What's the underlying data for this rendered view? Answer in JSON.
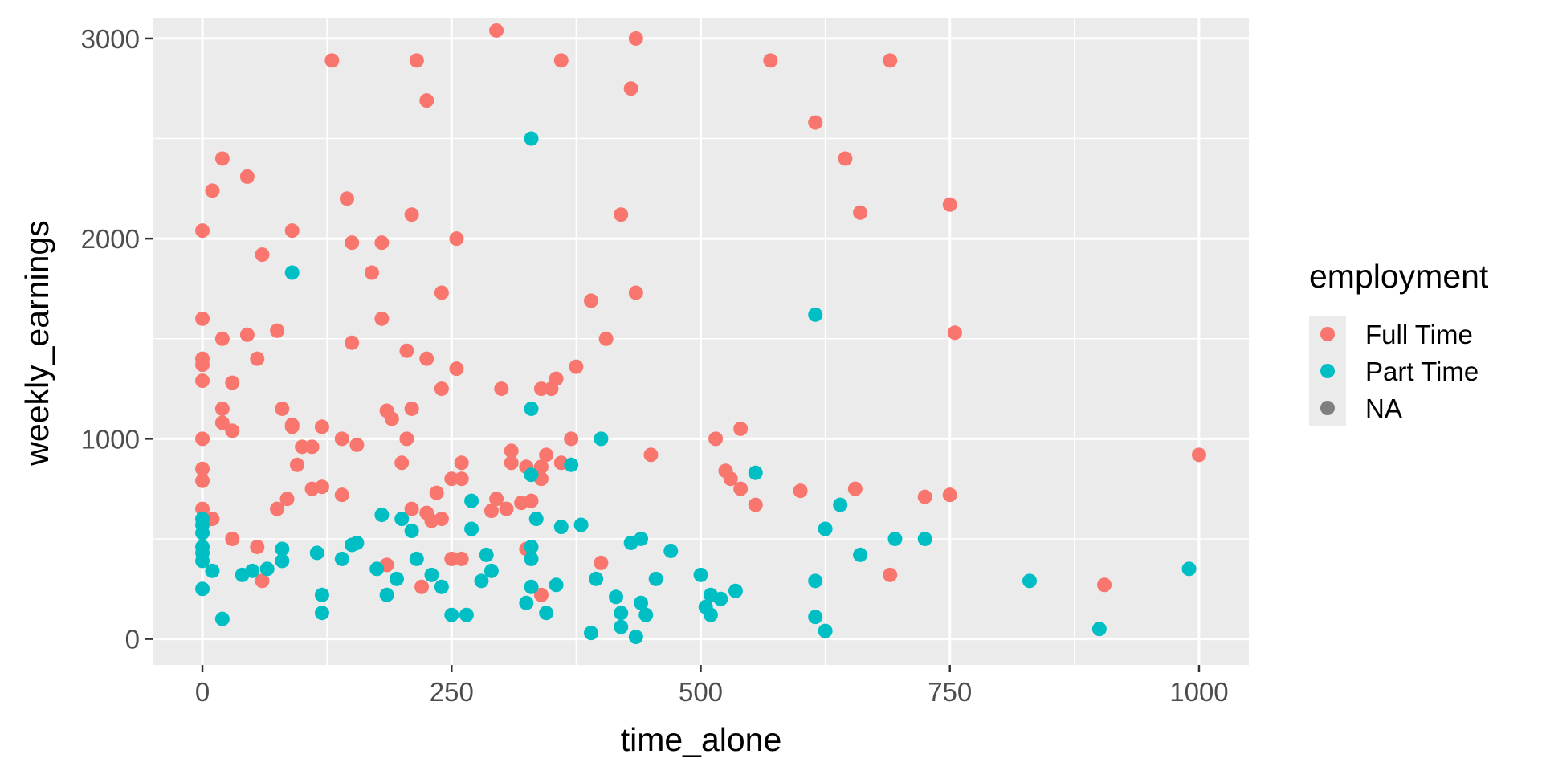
{
  "chart_data": {
    "type": "scatter",
    "xlabel": "time_alone",
    "ylabel": "weekly_earnings",
    "xlim": [
      -50,
      1050
    ],
    "ylim": [
      -130,
      3100
    ],
    "x_ticks": [
      0,
      250,
      500,
      750,
      1000
    ],
    "x_tick_labels": [
      "0",
      "250",
      "500",
      "750",
      "1000"
    ],
    "y_ticks": [
      0,
      1000,
      2000,
      3000
    ],
    "y_tick_labels": [
      "0",
      "1000",
      "2000",
      "3000"
    ],
    "grid": true,
    "legend": {
      "title": "employment",
      "placement": "right",
      "entries": [
        {
          "label": "Full Time",
          "color": "#F8766D"
        },
        {
          "label": "Part Time",
          "color": "#00BFC4"
        },
        {
          "label": "NA",
          "color": "#7F7F7F"
        }
      ]
    },
    "series": [
      {
        "name": "Full Time",
        "color": "#F8766D",
        "points": [
          [
            0,
            2040
          ],
          [
            0,
            1600
          ],
          [
            0,
            1400
          ],
          [
            0,
            1370
          ],
          [
            0,
            1290
          ],
          [
            0,
            1000
          ],
          [
            0,
            850
          ],
          [
            0,
            790
          ],
          [
            0,
            650
          ],
          [
            10,
            2240
          ],
          [
            10,
            600
          ],
          [
            20,
            2400
          ],
          [
            20,
            1500
          ],
          [
            20,
            1150
          ],
          [
            20,
            1080
          ],
          [
            30,
            1280
          ],
          [
            30,
            1040
          ],
          [
            30,
            500
          ],
          [
            45,
            2310
          ],
          [
            45,
            1520
          ],
          [
            55,
            1400
          ],
          [
            55,
            460
          ],
          [
            60,
            1920
          ],
          [
            60,
            290
          ],
          [
            75,
            1540
          ],
          [
            75,
            650
          ],
          [
            80,
            1150
          ],
          [
            85,
            700
          ],
          [
            90,
            2040
          ],
          [
            90,
            1070
          ],
          [
            90,
            1060
          ],
          [
            95,
            870
          ],
          [
            100,
            960
          ],
          [
            110,
            960
          ],
          [
            110,
            750
          ],
          [
            120,
            1060
          ],
          [
            120,
            760
          ],
          [
            130,
            2890
          ],
          [
            140,
            1000
          ],
          [
            140,
            720
          ],
          [
            145,
            2200
          ],
          [
            150,
            1980
          ],
          [
            150,
            1480
          ],
          [
            155,
            970
          ],
          [
            170,
            1830
          ],
          [
            180,
            1980
          ],
          [
            180,
            1600
          ],
          [
            185,
            1140
          ],
          [
            190,
            1100
          ],
          [
            200,
            880
          ],
          [
            205,
            1440
          ],
          [
            205,
            1000
          ],
          [
            210,
            2120
          ],
          [
            210,
            1150
          ],
          [
            210,
            650
          ],
          [
            215,
            2890
          ],
          [
            225,
            2690
          ],
          [
            225,
            1400
          ],
          [
            225,
            630
          ],
          [
            230,
            590
          ],
          [
            235,
            730
          ],
          [
            240,
            1730
          ],
          [
            240,
            1250
          ],
          [
            240,
            600
          ],
          [
            250,
            400
          ],
          [
            250,
            800
          ],
          [
            255,
            2000
          ],
          [
            255,
            1350
          ],
          [
            260,
            880
          ],
          [
            260,
            800
          ],
          [
            260,
            400
          ],
          [
            290,
            640
          ],
          [
            295,
            3040
          ],
          [
            295,
            700
          ],
          [
            300,
            1250
          ],
          [
            305,
            650
          ],
          [
            310,
            940
          ],
          [
            310,
            880
          ],
          [
            320,
            680
          ],
          [
            325,
            860
          ],
          [
            330,
            690
          ],
          [
            340,
            1250
          ],
          [
            340,
            860
          ],
          [
            340,
            800
          ],
          [
            345,
            920
          ],
          [
            350,
            1250
          ],
          [
            355,
            1300
          ],
          [
            360,
            2890
          ],
          [
            360,
            880
          ],
          [
            370,
            1000
          ],
          [
            375,
            1360
          ],
          [
            390,
            1690
          ],
          [
            400,
            380
          ],
          [
            405,
            1500
          ],
          [
            420,
            2120
          ],
          [
            430,
            2750
          ],
          [
            435,
            3000
          ],
          [
            435,
            1730
          ],
          [
            450,
            920
          ],
          [
            515,
            1000
          ],
          [
            525,
            840
          ],
          [
            530,
            800
          ],
          [
            540,
            1050
          ],
          [
            540,
            750
          ],
          [
            555,
            670
          ],
          [
            570,
            2890
          ],
          [
            600,
            740
          ],
          [
            615,
            2580
          ],
          [
            645,
            2400
          ],
          [
            655,
            750
          ],
          [
            660,
            2130
          ],
          [
            690,
            2890
          ],
          [
            690,
            320
          ],
          [
            725,
            710
          ],
          [
            750,
            720
          ],
          [
            750,
            2170
          ],
          [
            755,
            1530
          ],
          [
            905,
            270
          ],
          [
            1000,
            920
          ],
          [
            185,
            370
          ],
          [
            220,
            260
          ],
          [
            325,
            450
          ],
          [
            340,
            220
          ]
        ]
      },
      {
        "name": "Part Time",
        "color": "#00BFC4",
        "points": [
          [
            0,
            600
          ],
          [
            0,
            570
          ],
          [
            0,
            530
          ],
          [
            0,
            460
          ],
          [
            0,
            430
          ],
          [
            0,
            390
          ],
          [
            0,
            250
          ],
          [
            10,
            340
          ],
          [
            20,
            100
          ],
          [
            40,
            320
          ],
          [
            50,
            340
          ],
          [
            65,
            350
          ],
          [
            80,
            450
          ],
          [
            80,
            390
          ],
          [
            90,
            1830
          ],
          [
            115,
            430
          ],
          [
            120,
            220
          ],
          [
            120,
            130
          ],
          [
            140,
            400
          ],
          [
            150,
            470
          ],
          [
            155,
            480
          ],
          [
            175,
            350
          ],
          [
            180,
            620
          ],
          [
            185,
            220
          ],
          [
            195,
            300
          ],
          [
            200,
            600
          ],
          [
            210,
            540
          ],
          [
            215,
            400
          ],
          [
            230,
            320
          ],
          [
            240,
            260
          ],
          [
            250,
            120
          ],
          [
            265,
            120
          ],
          [
            270,
            690
          ],
          [
            270,
            550
          ],
          [
            280,
            290
          ],
          [
            285,
            420
          ],
          [
            290,
            340
          ],
          [
            325,
            180
          ],
          [
            330,
            2500
          ],
          [
            330,
            1150
          ],
          [
            330,
            820
          ],
          [
            330,
            460
          ],
          [
            330,
            400
          ],
          [
            330,
            260
          ],
          [
            335,
            600
          ],
          [
            345,
            130
          ],
          [
            355,
            270
          ],
          [
            360,
            560
          ],
          [
            370,
            870
          ],
          [
            380,
            570
          ],
          [
            390,
            30
          ],
          [
            395,
            300
          ],
          [
            400,
            1000
          ],
          [
            415,
            210
          ],
          [
            420,
            130
          ],
          [
            420,
            60
          ],
          [
            430,
            480
          ],
          [
            435,
            10
          ],
          [
            440,
            500
          ],
          [
            440,
            180
          ],
          [
            445,
            120
          ],
          [
            455,
            300
          ],
          [
            470,
            440
          ],
          [
            500,
            320
          ],
          [
            505,
            160
          ],
          [
            510,
            220
          ],
          [
            510,
            120
          ],
          [
            520,
            200
          ],
          [
            535,
            240
          ],
          [
            555,
            830
          ],
          [
            615,
            1620
          ],
          [
            615,
            290
          ],
          [
            615,
            110
          ],
          [
            625,
            550
          ],
          [
            625,
            40
          ],
          [
            640,
            670
          ],
          [
            660,
            420
          ],
          [
            695,
            500
          ],
          [
            725,
            500
          ],
          [
            830,
            290
          ],
          [
            900,
            50
          ],
          [
            990,
            350
          ]
        ]
      }
    ]
  }
}
